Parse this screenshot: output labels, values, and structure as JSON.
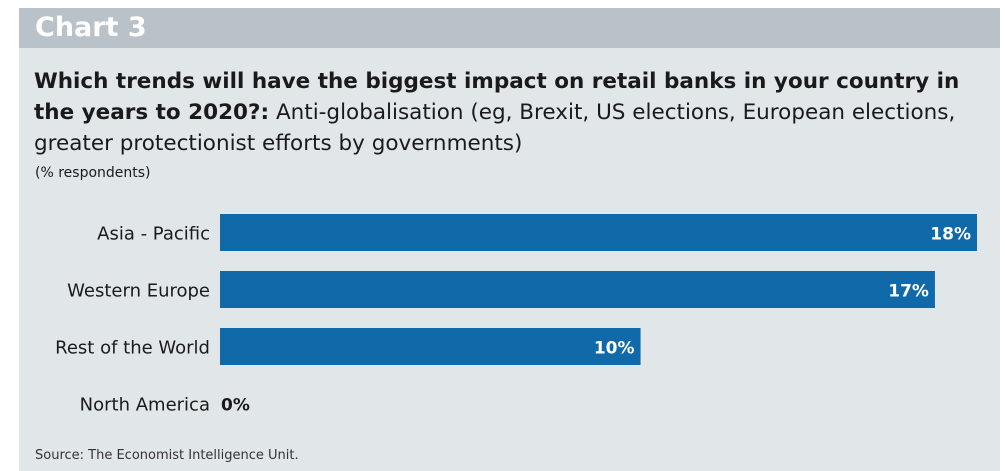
{
  "header": {
    "label": "Chart 3"
  },
  "chart_data": {
    "type": "bar",
    "orientation": "horizontal",
    "title_bold": "Which trends will have the biggest impact on retail banks in your country in the years to 2020?:",
    "title_regular": "Anti-globalisation (eg, Brexit, US elections, European elections, greater protectionist efforts by governments)",
    "unit_label": "(% respondents)",
    "categories": [
      "Asia - Pacific",
      "Western Europe",
      "Rest of the World",
      "North America"
    ],
    "values": [
      18,
      17,
      10,
      0
    ],
    "value_labels": [
      "18%",
      "17%",
      "10%",
      "0%"
    ],
    "xlim": [
      0,
      18
    ],
    "grid": false,
    "legend": "none",
    "colors": {
      "bar": "#1069a8",
      "bar_label": "#ffffff",
      "outside_label": "#1a1a1a"
    }
  },
  "footer": {
    "source": "Source: The Economist Intelligence Unit."
  }
}
